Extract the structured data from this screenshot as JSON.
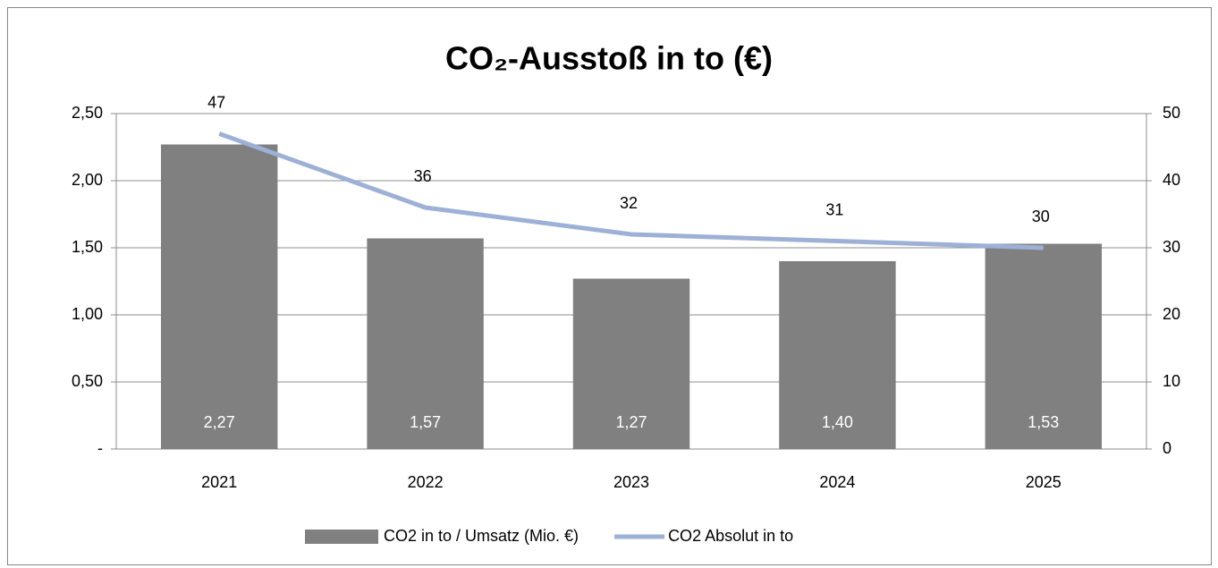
{
  "chart_data": {
    "type": "bar",
    "title": "CO₂-Ausstoß in to (€)",
    "categories": [
      "2021",
      "2022",
      "2023",
      "2024",
      "2025"
    ],
    "series": [
      {
        "name": "CO2 in to / Umsatz (Mio. €)",
        "color": "#808080",
        "values": [
          2.27,
          1.57,
          1.27,
          1.4,
          1.53
        ],
        "value_labels": [
          "2,27",
          "1,57",
          "1,27",
          "1,40",
          "1,53"
        ]
      },
      {
        "name": "CO2 Absolut in to",
        "type": "line",
        "axis": "y2",
        "color": "#9db0d6",
        "values": [
          47,
          36,
          32,
          31,
          30
        ]
      }
    ],
    "ylim": [
      0,
      2.5
    ],
    "yticks": [
      {
        "value": 0,
        "label": "-"
      },
      {
        "value": 0.5,
        "label": "0,50"
      },
      {
        "value": 1,
        "label": "1,00"
      },
      {
        "value": 1.5,
        "label": "1,50"
      },
      {
        "value": 2,
        "label": "2,00"
      },
      {
        "value": 2.5,
        "label": "2,50"
      }
    ],
    "y2lim": [
      0,
      50
    ],
    "y2ticks": [
      0,
      10,
      20,
      30,
      40,
      50
    ],
    "grid": true,
    "legend": "bottom"
  }
}
